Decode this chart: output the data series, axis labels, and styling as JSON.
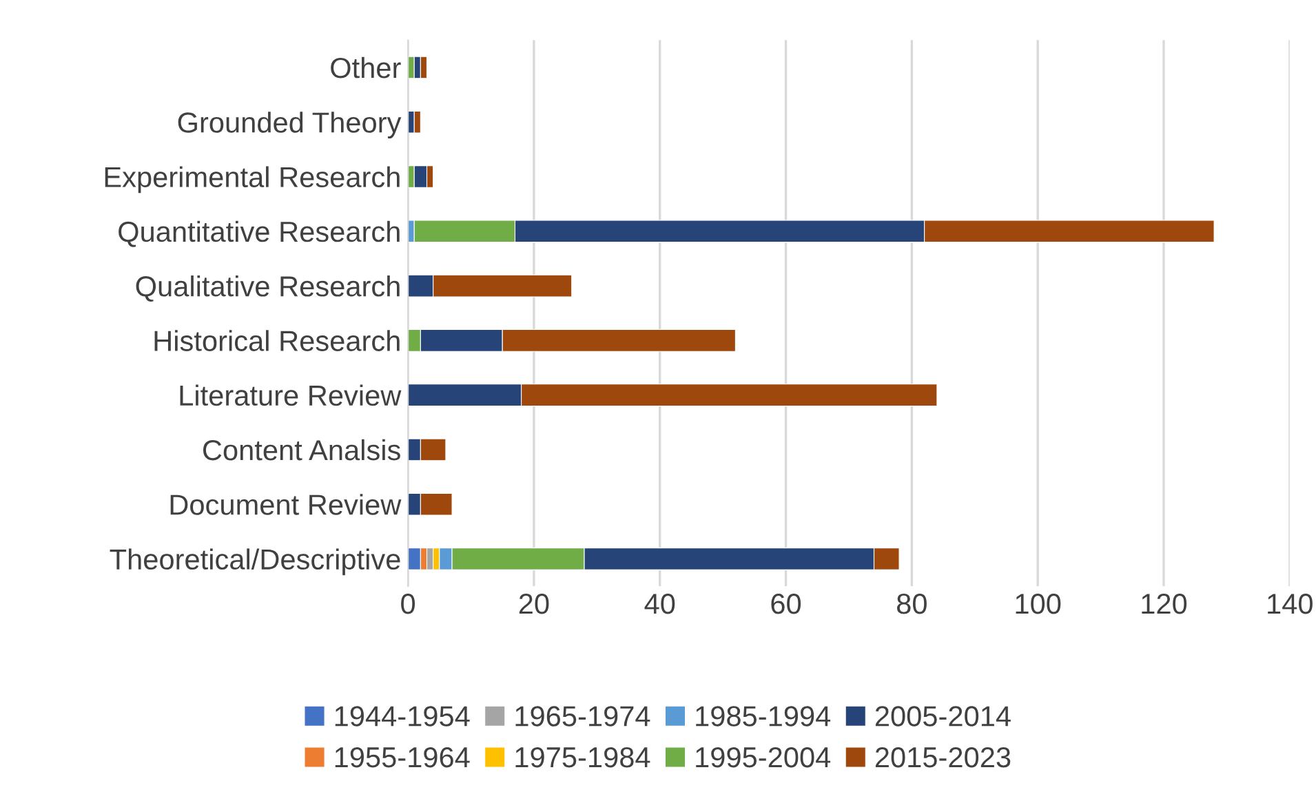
{
  "chart_data": {
    "type": "bar",
    "orientation": "horizontal",
    "stacked": true,
    "categories": [
      "Other",
      "Grounded Theory",
      "Experimental Research",
      "Quantitative Research",
      "Qualitative Research",
      "Historical Research",
      "Literature Review",
      "Content Analsis",
      "Document Review",
      "Theoretical/Descriptive"
    ],
    "series": [
      {
        "name": "1944-1954",
        "color": "#4472c4",
        "values": [
          0,
          0,
          0,
          0,
          0,
          0,
          0,
          0,
          0,
          2
        ]
      },
      {
        "name": "1955-1964",
        "color": "#ed7d31",
        "values": [
          0,
          0,
          0,
          0,
          0,
          0,
          0,
          0,
          0,
          1
        ]
      },
      {
        "name": "1965-1974",
        "color": "#a5a5a5",
        "values": [
          0,
          0,
          0,
          0,
          0,
          0,
          0,
          0,
          0,
          1
        ]
      },
      {
        "name": "1975-1984",
        "color": "#ffc000",
        "values": [
          0,
          0,
          0,
          0,
          0,
          0,
          0,
          0,
          0,
          1
        ]
      },
      {
        "name": "1985-1994",
        "color": "#5b9bd5",
        "values": [
          0,
          0,
          0,
          1,
          0,
          0,
          0,
          0,
          0,
          2
        ]
      },
      {
        "name": "1995-2004",
        "color": "#70ad47",
        "values": [
          1,
          0,
          1,
          16,
          0,
          2,
          0,
          0,
          0,
          21
        ]
      },
      {
        "name": "2005-2014",
        "color": "#264478",
        "values": [
          1,
          1,
          2,
          65,
          4,
          13,
          18,
          2,
          2,
          46
        ]
      },
      {
        "name": "2015-2023",
        "color": "#9e480e",
        "values": [
          1,
          1,
          1,
          46,
          22,
          37,
          66,
          4,
          5,
          4
        ]
      }
    ],
    "xlim": [
      0,
      140
    ],
    "xticks": [
      0,
      20,
      40,
      60,
      80,
      100,
      120,
      140
    ],
    "grid": "x",
    "legend": "bottom"
  }
}
